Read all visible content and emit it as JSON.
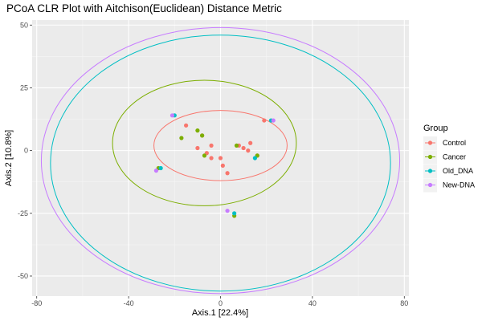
{
  "chart_data": {
    "type": "scatter",
    "title": "PCoA CLR Plot with Aitchison(Euclidean) Distance Metric",
    "xlabel": "Axis.1   [22.4%]",
    "ylabel": "Axis.2   [10.8%]",
    "xlim": [
      -82,
      82
    ],
    "ylim": [
      -58,
      52
    ],
    "xticks": [
      -80,
      -40,
      0,
      40,
      80
    ],
    "yticks": [
      -50,
      -25,
      0,
      25,
      50
    ],
    "grid": true,
    "legend": {
      "title": "Group",
      "position": "right"
    },
    "series": [
      {
        "name": "Control",
        "color": "#F8766D",
        "points": [
          [
            19,
            12
          ],
          [
            -15,
            10
          ],
          [
            -8,
            6
          ],
          [
            -10,
            1
          ],
          [
            -4,
            2
          ],
          [
            -6,
            -1
          ],
          [
            -4,
            -3
          ],
          [
            0,
            -3
          ],
          [
            1,
            -6
          ],
          [
            3,
            -9
          ],
          [
            8,
            2
          ],
          [
            10,
            1
          ],
          [
            12,
            0
          ],
          [
            13,
            3
          ],
          [
            16,
            -2
          ]
        ],
        "ellipse": {
          "cx": 0,
          "cy": 2,
          "rx": 29,
          "ry": 14
        }
      },
      {
        "name": "Cancer",
        "color": "#7CAE00",
        "points": [
          [
            -17,
            5
          ],
          [
            -10,
            8
          ],
          [
            -8,
            6
          ],
          [
            -7,
            -2
          ],
          [
            7,
            2
          ],
          [
            -27,
            -7
          ],
          [
            16,
            -2
          ],
          [
            6,
            -26
          ]
        ],
        "ellipse": {
          "cx": -7,
          "cy": 3,
          "rx": 40,
          "ry": 25
        }
      },
      {
        "name": "Old_DNA",
        "color": "#00BFC4",
        "points": [
          [
            -20,
            14
          ],
          [
            22,
            12
          ],
          [
            -26,
            -7
          ],
          [
            15,
            -3
          ],
          [
            6,
            -25
          ]
        ],
        "ellipse": {
          "cx": 0,
          "cy": -5,
          "rx": 74,
          "ry": 51
        }
      },
      {
        "name": "New-DNA",
        "color": "#C77CFF",
        "points": [
          [
            -21,
            14
          ],
          [
            23,
            12
          ],
          [
            -28,
            -8
          ],
          [
            3,
            -24
          ]
        ],
        "ellipse": {
          "cx": 0,
          "cy": -4,
          "rx": 78,
          "ry": 53
        }
      }
    ]
  }
}
